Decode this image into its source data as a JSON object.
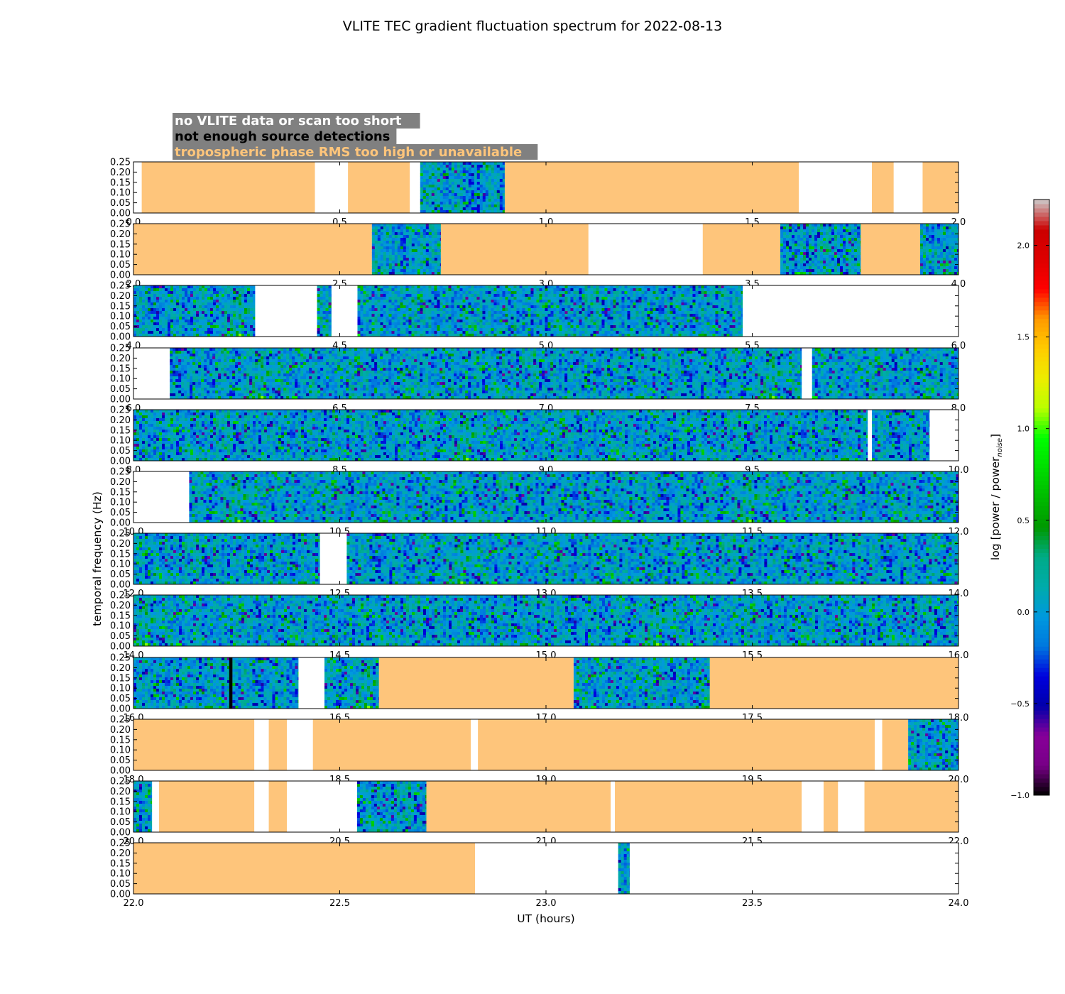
{
  "chart_data": {
    "type": "heatmap",
    "title": "VLITE TEC gradient fluctuation spectrum for 2022-08-13",
    "xlabel": "UT (hours)",
    "ylabel": "temporal frequency (Hz)",
    "ylim": [
      0,
      0.25
    ],
    "yticks": [
      "0.00",
      "0.05",
      "0.10",
      "0.15",
      "0.20",
      "0.25"
    ],
    "colorbar": {
      "label_main": "log [power / power",
      "label_sub": "noise",
      "label_end": "]",
      "range": [
        -1.0,
        2.25
      ],
      "colormap": "nipy_spectral",
      "ticks": [
        "−1.0",
        "−0.5",
        "0.0",
        "0.5",
        "1.0",
        "1.5",
        "2.0"
      ]
    },
    "legend": {
      "placement": "top-left",
      "background": "#808080",
      "entries": [
        {
          "label": "no VLITE data or scan too short",
          "color": "#ffffff"
        },
        {
          "label": "not enough source detections",
          "color": "#000000"
        },
        {
          "label": "tropospheric phase RMS too high or unavailable",
          "color": "#fec57b"
        }
      ]
    },
    "category_colors": {
      "nodata": "#ffffff",
      "detect": "#000000",
      "tropo": "#fec57b"
    },
    "panels": [
      {
        "xlim": [
          0,
          2
        ],
        "xticks": [
          "0.0",
          "0.5",
          "1.0",
          "1.5",
          "2.0"
        ],
        "segments": [
          [
            0.0,
            0.02,
            "nodata"
          ],
          [
            0.02,
            0.44,
            "tropo"
          ],
          [
            0.44,
            0.52,
            "nodata"
          ],
          [
            0.52,
            0.67,
            "tropo"
          ],
          [
            0.67,
            0.695,
            "nodata"
          ],
          [
            0.695,
            0.9,
            "data"
          ],
          [
            0.9,
            1.613,
            "tropo"
          ],
          [
            1.613,
            1.79,
            "nodata"
          ],
          [
            1.79,
            1.843,
            "tropo"
          ],
          [
            1.843,
            1.913,
            "nodata"
          ],
          [
            1.913,
            2.0,
            "tropo"
          ]
        ]
      },
      {
        "xlim": [
          2,
          4
        ],
        "xticks": [
          "2.0",
          "2.5",
          "3.0",
          "3.5",
          "4.0"
        ],
        "segments": [
          [
            2.0,
            2.578,
            "tropo"
          ],
          [
            2.578,
            2.745,
            "data"
          ],
          [
            2.745,
            3.103,
            "tropo"
          ],
          [
            3.103,
            3.38,
            "nodata"
          ],
          [
            3.38,
            3.568,
            "tropo"
          ],
          [
            3.568,
            3.763,
            "data"
          ],
          [
            3.763,
            3.907,
            "tropo"
          ],
          [
            3.907,
            4.0,
            "data"
          ]
        ]
      },
      {
        "xlim": [
          4,
          6
        ],
        "xticks": [
          "4.0",
          "4.5",
          "5.0",
          "5.5",
          "6.0"
        ],
        "segments": [
          [
            4.0,
            4.295,
            "data"
          ],
          [
            4.295,
            4.445,
            "nodata"
          ],
          [
            4.445,
            4.48,
            "data"
          ],
          [
            4.48,
            4.543,
            "nodata"
          ],
          [
            4.543,
            5.477,
            "data"
          ],
          [
            5.477,
            6.0,
            "nodata"
          ]
        ]
      },
      {
        "xlim": [
          6,
          8
        ],
        "xticks": [
          "6.0",
          "6.5",
          "7.0",
          "7.5",
          "8.0"
        ],
        "segments": [
          [
            6.0,
            6.088,
            "nodata"
          ],
          [
            6.088,
            7.62,
            "data"
          ],
          [
            7.62,
            7.645,
            "nodata"
          ],
          [
            7.645,
            8.0,
            "data"
          ]
        ]
      },
      {
        "xlim": [
          8,
          10
        ],
        "xticks": [
          "8.0",
          "8.5",
          "9.0",
          "9.5",
          "10.0"
        ],
        "segments": [
          [
            8.0,
            9.78,
            "data"
          ],
          [
            9.78,
            9.79,
            "nodata"
          ],
          [
            9.79,
            9.93,
            "data"
          ],
          [
            9.93,
            10.0,
            "nodata"
          ]
        ]
      },
      {
        "xlim": [
          10,
          12
        ],
        "xticks": [
          "10.0",
          "10.5",
          "11.0",
          "11.5",
          "12.0"
        ],
        "segments": [
          [
            10.0,
            10.135,
            "nodata"
          ],
          [
            10.135,
            12.0,
            "data"
          ]
        ]
      },
      {
        "xlim": [
          12,
          14
        ],
        "xticks": [
          "12.0",
          "12.5",
          "13.0",
          "13.5",
          "14.0"
        ],
        "segments": [
          [
            12.0,
            12.452,
            "data"
          ],
          [
            12.452,
            12.517,
            "nodata"
          ],
          [
            12.517,
            14.0,
            "data"
          ]
        ]
      },
      {
        "xlim": [
          14,
          16
        ],
        "xticks": [
          "14.0",
          "14.5",
          "15.0",
          "15.5",
          "16.0"
        ],
        "segments": [
          [
            14.0,
            16.0,
            "data"
          ]
        ]
      },
      {
        "xlim": [
          16,
          18
        ],
        "xticks": [
          "16.0",
          "16.5",
          "17.0",
          "17.5",
          "18.0"
        ],
        "segments": [
          [
            16.0,
            16.232,
            "data"
          ],
          [
            16.232,
            16.24,
            "detect"
          ],
          [
            16.24,
            16.4,
            "data"
          ],
          [
            16.4,
            16.463,
            "nodata"
          ],
          [
            16.463,
            16.595,
            "data"
          ],
          [
            16.595,
            17.067,
            "tropo"
          ],
          [
            17.067,
            17.397,
            "data"
          ],
          [
            17.397,
            18.0,
            "tropo"
          ]
        ]
      },
      {
        "xlim": [
          18,
          20
        ],
        "xticks": [
          "18.0",
          "18.5",
          "19.0",
          "19.5",
          "20.0"
        ],
        "segments": [
          [
            18.0,
            18.293,
            "tropo"
          ],
          [
            18.293,
            18.328,
            "nodata"
          ],
          [
            18.328,
            18.372,
            "tropo"
          ],
          [
            18.372,
            18.435,
            "nodata"
          ],
          [
            18.435,
            18.818,
            "tropo"
          ],
          [
            18.818,
            18.835,
            "nodata"
          ],
          [
            18.835,
            19.797,
            "tropo"
          ],
          [
            19.797,
            19.815,
            "nodata"
          ],
          [
            19.815,
            19.878,
            "tropo"
          ],
          [
            19.878,
            20.0,
            "data"
          ]
        ]
      },
      {
        "xlim": [
          20,
          22
        ],
        "xticks": [
          "20.0",
          "20.5",
          "21.0",
          "21.5",
          "22.0"
        ],
        "segments": [
          [
            20.0,
            20.045,
            "data"
          ],
          [
            20.045,
            20.062,
            "nodata"
          ],
          [
            20.062,
            20.293,
            "tropo"
          ],
          [
            20.293,
            20.328,
            "nodata"
          ],
          [
            20.328,
            20.372,
            "tropo"
          ],
          [
            20.372,
            20.542,
            "nodata"
          ],
          [
            20.542,
            20.71,
            "data"
          ],
          [
            20.71,
            21.157,
            "tropo"
          ],
          [
            21.157,
            21.167,
            "nodata"
          ],
          [
            21.167,
            21.62,
            "tropo"
          ],
          [
            21.62,
            21.673,
            "nodata"
          ],
          [
            21.673,
            21.708,
            "tropo"
          ],
          [
            21.708,
            21.772,
            "nodata"
          ],
          [
            21.772,
            22.0,
            "tropo"
          ]
        ]
      },
      {
        "xlim": [
          22,
          24
        ],
        "xticks": [
          "22.0",
          "22.5",
          "23.0",
          "23.5",
          "24.0"
        ],
        "segments": [
          [
            22.0,
            22.828,
            "tropo"
          ],
          [
            22.828,
            23.175,
            "nodata"
          ],
          [
            23.175,
            23.203,
            "data"
          ],
          [
            23.203,
            24.0,
            "nodata"
          ]
        ]
      }
    ]
  }
}
